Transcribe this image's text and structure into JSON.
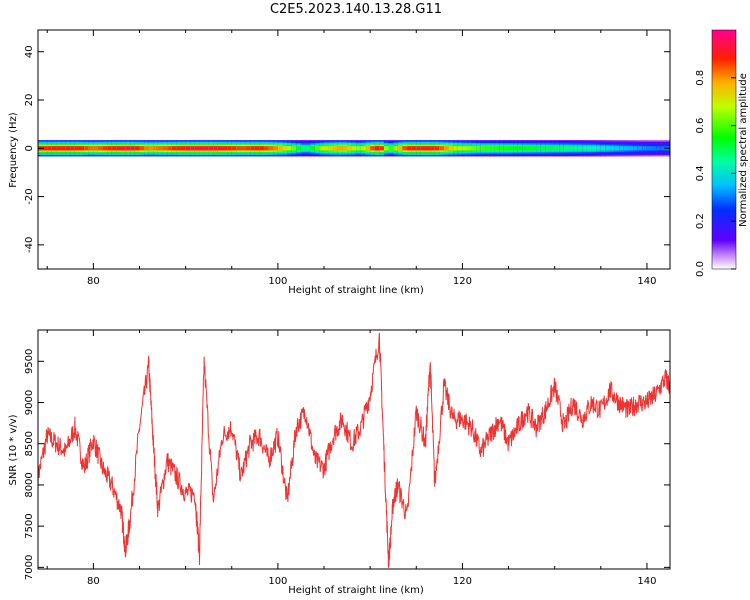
{
  "title": "C2E5.2023.140.13.28.G11",
  "chart_data": [
    {
      "type": "heatmap",
      "xlabel": "Height of straight line (km)",
      "ylabel": "Frequency (Hz)",
      "xlim": [
        74,
        142.5
      ],
      "ylim": [
        -50,
        49
      ],
      "x_ticks": [
        80,
        100,
        120,
        140
      ],
      "y_ticks": [
        -40,
        -20,
        0,
        20,
        40
      ],
      "colorbar": {
        "label": "Normalized spectral amplitude",
        "range": [
          0,
          1
        ],
        "ticks": [
          "0.0",
          "0.2",
          "0.4",
          "0.6",
          "0.8"
        ],
        "tick_values": [
          0,
          0.2,
          0.4,
          0.6,
          0.8
        ]
      },
      "band": {
        "center_hz": 0,
        "halfwidth_hz": 2.5,
        "amplitude_profile": [
          {
            "x": 74,
            "a": 0.9
          },
          {
            "x": 78,
            "a": 0.92
          },
          {
            "x": 80,
            "a": 0.82
          },
          {
            "x": 82,
            "a": 0.9
          },
          {
            "x": 84,
            "a": 0.95
          },
          {
            "x": 86,
            "a": 0.8
          },
          {
            "x": 88,
            "a": 0.85
          },
          {
            "x": 90,
            "a": 0.93
          },
          {
            "x": 93,
            "a": 0.95
          },
          {
            "x": 96,
            "a": 0.85
          },
          {
            "x": 98,
            "a": 0.9
          },
          {
            "x": 100,
            "a": 0.8
          },
          {
            "x": 102,
            "a": 0.6
          },
          {
            "x": 103,
            "a": 0.45
          },
          {
            "x": 105,
            "a": 0.7
          },
          {
            "x": 107,
            "a": 0.8
          },
          {
            "x": 109,
            "a": 0.65
          },
          {
            "x": 111,
            "a": 0.98
          },
          {
            "x": 112,
            "a": 0.55
          },
          {
            "x": 114,
            "a": 0.9
          },
          {
            "x": 117,
            "a": 0.92
          },
          {
            "x": 119,
            "a": 0.72
          },
          {
            "x": 122,
            "a": 0.6
          },
          {
            "x": 126,
            "a": 0.55
          },
          {
            "x": 130,
            "a": 0.5
          },
          {
            "x": 134,
            "a": 0.45
          },
          {
            "x": 138,
            "a": 0.35
          },
          {
            "x": 141,
            "a": 0.3
          },
          {
            "x": 142.5,
            "a": 0.3
          }
        ]
      }
    },
    {
      "type": "line",
      "xlabel": "Height of straight line (km)",
      "ylabel": "SNR (10 * v/v)",
      "xlim": [
        74,
        142.5
      ],
      "ylim": [
        6980,
        9880
      ],
      "x_ticks": [
        80,
        100,
        120,
        140
      ],
      "y_ticks": [
        7000,
        7500,
        8000,
        8500,
        9000,
        9500
      ],
      "line_color": "#ee3333",
      "x": [
        74,
        75,
        76,
        77,
        78,
        79,
        80,
        81,
        82,
        83,
        83.5,
        84,
        85,
        86,
        86.5,
        87,
        88,
        89,
        90,
        91,
        91.5,
        92,
        93,
        94,
        95,
        96,
        97,
        98,
        99,
        100,
        101,
        102,
        103,
        104,
        105,
        106,
        107,
        108,
        109,
        110,
        111,
        111.5,
        112,
        112.5,
        113,
        114,
        115,
        116,
        116.5,
        117,
        118,
        119,
        120,
        121,
        122,
        123,
        124,
        125,
        126,
        127,
        128,
        129,
        130,
        131,
        132,
        133,
        134,
        135,
        136,
        137,
        138,
        139,
        140,
        141,
        142,
        142.5
      ],
      "y": [
        8100,
        8600,
        8500,
        8400,
        8700,
        8200,
        8550,
        8200,
        8000,
        7700,
        7200,
        7600,
        8700,
        9450,
        8500,
        7700,
        8300,
        8100,
        7900,
        7900,
        7150,
        9500,
        7800,
        8600,
        8700,
        8100,
        8500,
        8600,
        8300,
        8600,
        7800,
        8700,
        8900,
        8300,
        8200,
        8600,
        8800,
        8500,
        8700,
        9100,
        9800,
        8400,
        7050,
        7800,
        8000,
        7600,
        8900,
        8500,
        9500,
        8000,
        9200,
        8800,
        8800,
        8700,
        8400,
        8600,
        8800,
        8500,
        8700,
        8900,
        8700,
        8900,
        9200,
        8700,
        9000,
        8800,
        9000,
        8900,
        9150,
        9000,
        8900,
        9000,
        9000,
        9100,
        9300,
        9200
      ]
    }
  ]
}
